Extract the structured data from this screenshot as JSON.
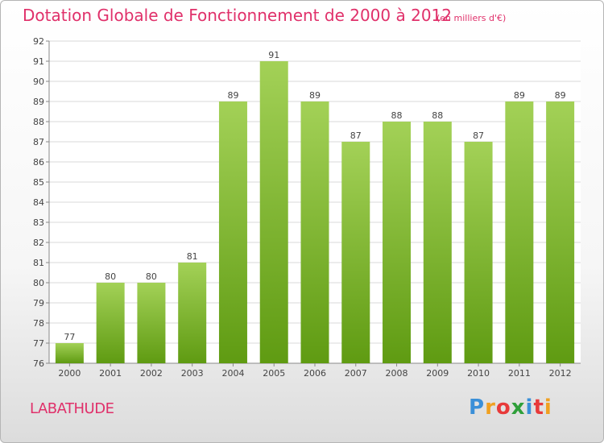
{
  "header": {
    "title": "Dotation Globale de Fonctionnement de 2000 à 2012",
    "subtitle": "(en milliers d'€)"
  },
  "footer": {
    "commune": "LABATHUDE",
    "logo_text": "Proxiti"
  },
  "colors": {
    "title": "#e0306a",
    "bar_top": "#a3d157",
    "bar_bottom": "#5f9b12",
    "logo_letters": [
      "#3a8fd8",
      "#f0a020",
      "#e83a3a",
      "#2f9f3a",
      "#3a8fd8",
      "#e83a3a",
      "#f0a020"
    ]
  },
  "chart_data": {
    "type": "bar",
    "title": "Dotation Globale de Fonctionnement de 2000 à 2012",
    "subtitle": "(en milliers d'€)",
    "categories": [
      "2000",
      "2001",
      "2002",
      "2003",
      "2004",
      "2005",
      "2006",
      "2007",
      "2008",
      "2009",
      "2010",
      "2011",
      "2012"
    ],
    "values": [
      77,
      80,
      80,
      81,
      89,
      91,
      89,
      87,
      88,
      88,
      87,
      89,
      89
    ],
    "ylim": [
      76,
      92
    ],
    "yticks": [
      76,
      77,
      78,
      79,
      80,
      81,
      82,
      83,
      84,
      85,
      86,
      87,
      88,
      89,
      90,
      91,
      92
    ],
    "grid": true,
    "legend": "none"
  }
}
